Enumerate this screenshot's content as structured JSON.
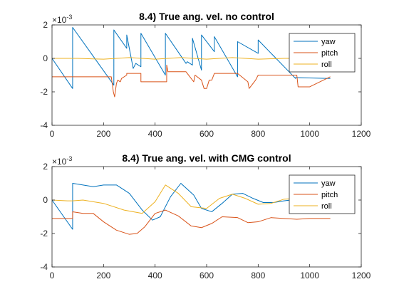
{
  "chart_data": [
    {
      "type": "line",
      "title": "8.4) True ang. vel. no control",
      "xlabel": "",
      "ylabel": "",
      "xlim": [
        0,
        1200
      ],
      "ylim": [
        -4,
        2
      ],
      "y_exponent_label": "×10",
      "y_exponent": "-3",
      "xticks": [
        "0",
        "200",
        "400",
        "600",
        "800",
        "1000",
        "1200"
      ],
      "yticks": [
        "-4",
        "-2",
        "0",
        "2"
      ],
      "grid": false,
      "legend_position": "top-right",
      "series": [
        {
          "name": "yaw",
          "color": "#0072BD",
          "x": [
            0,
            80,
            80,
            240,
            240,
            290,
            290,
            315,
            325,
            345,
            345,
            440,
            440,
            520,
            525,
            545,
            545,
            580,
            580,
            630,
            630,
            720,
            720,
            800,
            800,
            945,
            945,
            1080
          ],
          "y": [
            0,
            -1.8,
            1.85,
            -1.6,
            1.7,
            0.6,
            1.4,
            -0.6,
            -0.3,
            -0.5,
            1.5,
            -1.0,
            1.5,
            -0.3,
            -0.2,
            -0.4,
            1.2,
            -0.7,
            1.4,
            0.4,
            1.3,
            -1.1,
            1.0,
            0.3,
            1.1,
            -1.2,
            -1.15,
            -1.2
          ]
        },
        {
          "name": "pitch",
          "color": "#D95319",
          "x": [
            0,
            230,
            238,
            243,
            250,
            255,
            265,
            270,
            290,
            290,
            345,
            345,
            445,
            445,
            450,
            520,
            550,
            555,
            580,
            590,
            600,
            610,
            620,
            630,
            720,
            760,
            765,
            790,
            800,
            950,
            955,
            1000,
            1080
          ],
          "y": [
            -1.1,
            -1.1,
            -2.0,
            -2.3,
            -1.5,
            -1.3,
            -1.4,
            -1.2,
            -1.0,
            -0.9,
            -0.9,
            -1.4,
            -1.4,
            -0.4,
            -0.8,
            -0.8,
            -1.4,
            -1.0,
            -1.3,
            -1.8,
            -1.8,
            -1.3,
            -1.3,
            -0.9,
            -0.9,
            -1.4,
            -1.8,
            -1.3,
            -1.0,
            -1.0,
            -1.7,
            -1.7,
            -1.1
          ]
        },
        {
          "name": "roll",
          "color": "#EDB120",
          "x": [
            0,
            100,
            200,
            300,
            400,
            500,
            600,
            700,
            800,
            900,
            1000,
            1080
          ],
          "y": [
            0,
            0,
            -0.05,
            0.05,
            -0.05,
            0.05,
            -0.05,
            0.05,
            -0.05,
            0,
            0,
            0
          ]
        }
      ]
    },
    {
      "type": "line",
      "title": "8.4) True ang. vel. with CMG control",
      "xlabel": "",
      "ylabel": "",
      "xlim": [
        0,
        1200
      ],
      "ylim": [
        -4,
        2
      ],
      "y_exponent_label": "×10",
      "y_exponent": "-3",
      "xticks": [
        "0",
        "200",
        "400",
        "600",
        "800",
        "1000",
        "1200"
      ],
      "yticks": [
        "-4",
        "-2",
        "0",
        "2"
      ],
      "grid": false,
      "legend_position": "top-right",
      "series": [
        {
          "name": "yaw",
          "color": "#0072BD",
          "x": [
            0,
            80,
            80,
            160,
            200,
            250,
            300,
            350,
            390,
            420,
            460,
            500,
            550,
            580,
            620,
            660,
            700,
            740,
            780,
            820,
            860,
            900,
            950,
            1000,
            1080
          ],
          "y": [
            0,
            -1.75,
            1.0,
            0.8,
            0.9,
            0.9,
            0.4,
            -0.6,
            -1.2,
            -1.0,
            0.2,
            1.0,
            0.3,
            -0.5,
            -0.7,
            -0.2,
            0.35,
            0.4,
            0.1,
            -0.15,
            -0.15,
            -0.05,
            0.05,
            0,
            0
          ]
        },
        {
          "name": "pitch",
          "color": "#D95319",
          "x": [
            0,
            80,
            80,
            120,
            160,
            200,
            250,
            300,
            330,
            360,
            400,
            440,
            490,
            540,
            580,
            620,
            660,
            720,
            760,
            800,
            850,
            900,
            950,
            1000,
            1080
          ],
          "y": [
            -1.1,
            -1.1,
            -0.7,
            -0.8,
            -0.8,
            -1.3,
            -1.8,
            -2.05,
            -2.0,
            -1.6,
            -0.8,
            -0.6,
            -0.95,
            -1.55,
            -1.65,
            -1.4,
            -1.0,
            -1.05,
            -1.35,
            -1.3,
            -1.05,
            -1.1,
            -1.15,
            -1.1,
            -1.1
          ]
        },
        {
          "name": "roll",
          "color": "#EDB120",
          "x": [
            0,
            60,
            80,
            120,
            200,
            280,
            350,
            400,
            440,
            490,
            540,
            600,
            650,
            700,
            750,
            800,
            850,
            900,
            950,
            1000,
            1080
          ],
          "y": [
            0,
            -0.05,
            -0.05,
            0,
            -0.2,
            -0.6,
            -0.8,
            -0.1,
            0.9,
            0.4,
            -0.4,
            -0.5,
            0.1,
            0.35,
            0.1,
            -0.25,
            -0.2,
            0.05,
            0.1,
            0,
            0
          ]
        }
      ]
    }
  ]
}
